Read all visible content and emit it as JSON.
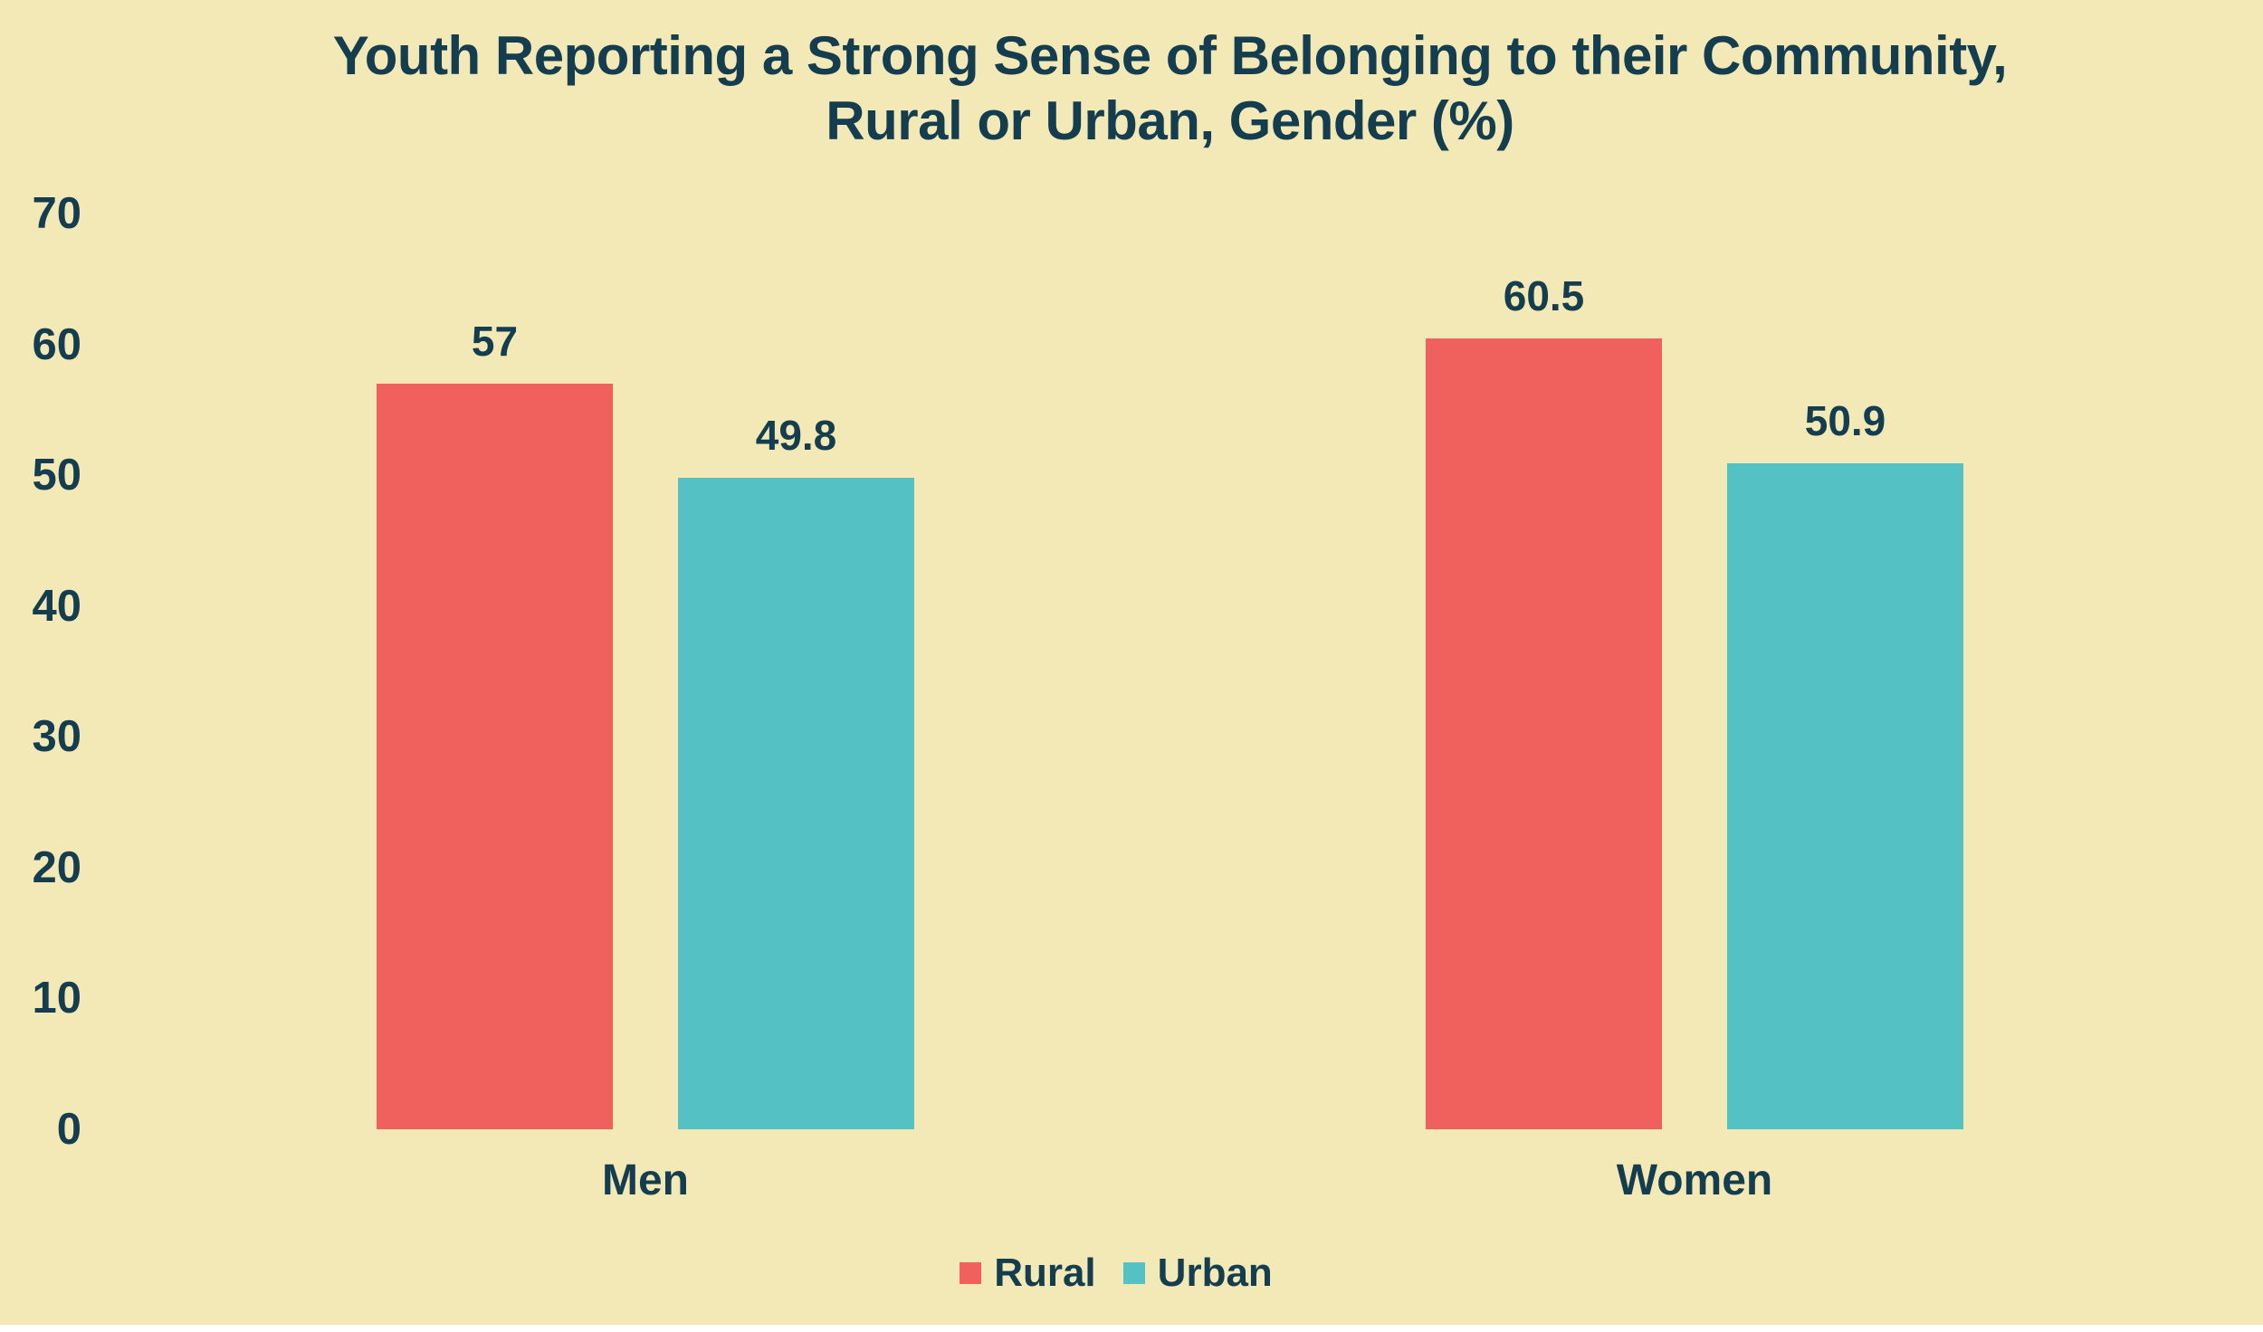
{
  "colors": {
    "background": "#F2E9B6",
    "text": "#143D4F",
    "rural": "#F0615D",
    "urban": "#54C2C5",
    "footer_strip": "#FFFFFF"
  },
  "chart_data": {
    "type": "bar",
    "title": "Youth Reporting a Strong Sense of Belonging to their Community, Rural or Urban, Gender (%)",
    "title_lines": [
      "Youth Reporting a Strong Sense of Belonging to their Community,",
      "Rural or Urban, Gender (%)"
    ],
    "categories": [
      "Men",
      "Women"
    ],
    "series": [
      {
        "name": "Rural",
        "color": "#F0615D",
        "values": [
          57,
          60.5
        ],
        "labels": [
          "57",
          "60.5"
        ]
      },
      {
        "name": "Urban",
        "color": "#54C2C5",
        "values": [
          49.8,
          50.9
        ],
        "labels": [
          "49.8",
          "50.9"
        ]
      }
    ],
    "y_axis": {
      "min": 0,
      "max": 70,
      "step": 10,
      "ticks": [
        "0",
        "10",
        "20",
        "30",
        "40",
        "50",
        "60",
        "70"
      ]
    },
    "legend": [
      {
        "label": "Rural",
        "color": "#F0615D"
      },
      {
        "label": "Urban",
        "color": "#54C2C5"
      }
    ],
    "grid": false,
    "legend_position": "bottom",
    "value_labels_shown": true
  }
}
